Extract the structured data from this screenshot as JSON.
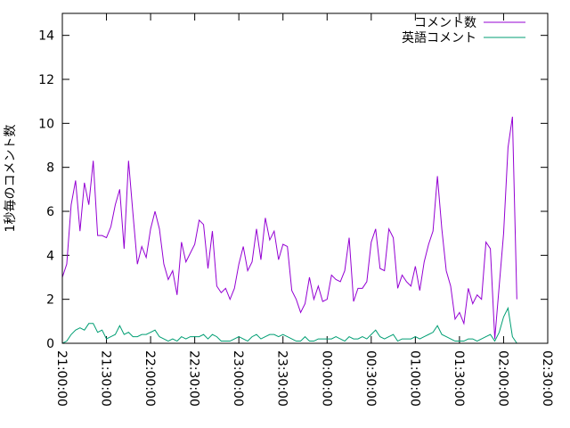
{
  "chart_data": {
    "type": "line",
    "ylabel": "1秒毎のコメント数",
    "x": [
      0,
      3,
      6,
      9,
      12,
      15,
      18,
      21,
      24,
      27,
      30,
      33,
      36,
      39,
      42,
      45,
      48,
      51,
      54,
      57,
      60,
      63,
      66,
      69,
      72,
      75,
      78,
      81,
      84,
      87,
      90,
      93,
      96,
      99,
      102,
      105,
      108,
      111,
      114,
      117,
      120,
      123,
      126,
      129,
      132,
      135,
      138,
      141,
      144,
      147,
      150,
      153,
      156,
      159,
      162,
      165,
      168,
      171,
      174,
      177,
      180,
      183,
      186,
      189,
      192,
      195,
      198,
      201,
      204,
      207,
      210,
      213,
      216,
      219,
      222,
      225,
      228,
      231,
      234,
      237,
      240,
      243,
      246,
      249,
      252,
      255,
      258,
      261,
      264,
      267,
      270,
      273,
      276,
      279,
      282,
      285,
      288,
      291,
      294,
      297,
      300,
      303,
      306,
      309
    ],
    "series": [
      {
        "name": "コメント数",
        "color": "#9400d3",
        "values": [
          3.0,
          3.6,
          6.3,
          7.4,
          5.1,
          7.3,
          6.3,
          8.3,
          4.9,
          4.9,
          4.8,
          5.3,
          6.3,
          7.0,
          4.3,
          8.3,
          5.9,
          3.6,
          4.4,
          3.9,
          5.2,
          6.0,
          5.2,
          3.6,
          2.9,
          3.3,
          2.2,
          4.6,
          3.7,
          4.1,
          4.5,
          5.6,
          5.4,
          3.4,
          5.1,
          2.6,
          2.3,
          2.5,
          2.0,
          2.5,
          3.6,
          4.4,
          3.3,
          3.7,
          5.2,
          3.8,
          5.7,
          4.7,
          5.1,
          3.8,
          4.5,
          4.4,
          2.4,
          2.0,
          1.4,
          1.8,
          3.0,
          2.0,
          2.6,
          1.9,
          2.0,
          3.1,
          2.9,
          2.8,
          3.3,
          4.8,
          1.9,
          2.5,
          2.5,
          2.8,
          4.6,
          5.2,
          3.4,
          3.3,
          5.2,
          4.8,
          2.5,
          3.1,
          2.8,
          2.6,
          3.5,
          2.4,
          3.7,
          4.5,
          5.1,
          7.6,
          5.2,
          3.3,
          2.6,
          1.1,
          1.4,
          0.9,
          2.5,
          1.8,
          2.2,
          2.0,
          4.6,
          4.3,
          0.2,
          2.6,
          5.0,
          8.9,
          10.3,
          2.0
        ]
      },
      {
        "name": "英語コメント",
        "color": "#009e73",
        "values": [
          0,
          0.1,
          0.4,
          0.6,
          0.7,
          0.6,
          0.9,
          0.9,
          0.5,
          0.6,
          0.2,
          0.3,
          0.4,
          0.8,
          0.4,
          0.5,
          0.3,
          0.3,
          0.4,
          0.4,
          0.5,
          0.6,
          0.3,
          0.2,
          0.1,
          0.2,
          0.1,
          0.3,
          0.2,
          0.3,
          0.3,
          0.3,
          0.4,
          0.2,
          0.4,
          0.3,
          0.1,
          0.1,
          0.1,
          0.2,
          0.3,
          0.2,
          0.1,
          0.3,
          0.4,
          0.2,
          0.3,
          0.4,
          0.4,
          0.3,
          0.4,
          0.3,
          0.2,
          0.1,
          0.1,
          0.3,
          0.1,
          0.1,
          0.2,
          0.2,
          0.2,
          0.2,
          0.3,
          0.2,
          0.1,
          0.3,
          0.2,
          0.2,
          0.3,
          0.2,
          0.4,
          0.6,
          0.3,
          0.2,
          0.3,
          0.4,
          0.1,
          0.2,
          0.2,
          0.2,
          0.3,
          0.2,
          0.3,
          0.4,
          0.5,
          0.8,
          0.4,
          0.3,
          0.2,
          0.1,
          0.1,
          0.1,
          0.2,
          0.2,
          0.1,
          0.2,
          0.3,
          0.4,
          0.1,
          0.5,
          1.2,
          1.6,
          0.3,
          0
        ]
      }
    ],
    "xlim": [
      0,
      330
    ],
    "xticks": [
      {
        "value": 0,
        "label": "21:00:00"
      },
      {
        "value": 30,
        "label": "21:30:00"
      },
      {
        "value": 60,
        "label": "22:00:00"
      },
      {
        "value": 90,
        "label": "22:30:00"
      },
      {
        "value": 120,
        "label": "23:00:00"
      },
      {
        "value": 150,
        "label": "23:30:00"
      },
      {
        "value": 180,
        "label": "00:00:00"
      },
      {
        "value": 210,
        "label": "00:30:00"
      },
      {
        "value": 240,
        "label": "01:00:00"
      },
      {
        "value": 270,
        "label": "01:30:00"
      },
      {
        "value": 300,
        "label": "02:00:00"
      },
      {
        "value": 330,
        "label": "02:30:00"
      }
    ],
    "ylim": [
      0,
      15
    ],
    "yticks": [
      0,
      2,
      4,
      6,
      8,
      10,
      12,
      14
    ],
    "legend": "upper right"
  }
}
